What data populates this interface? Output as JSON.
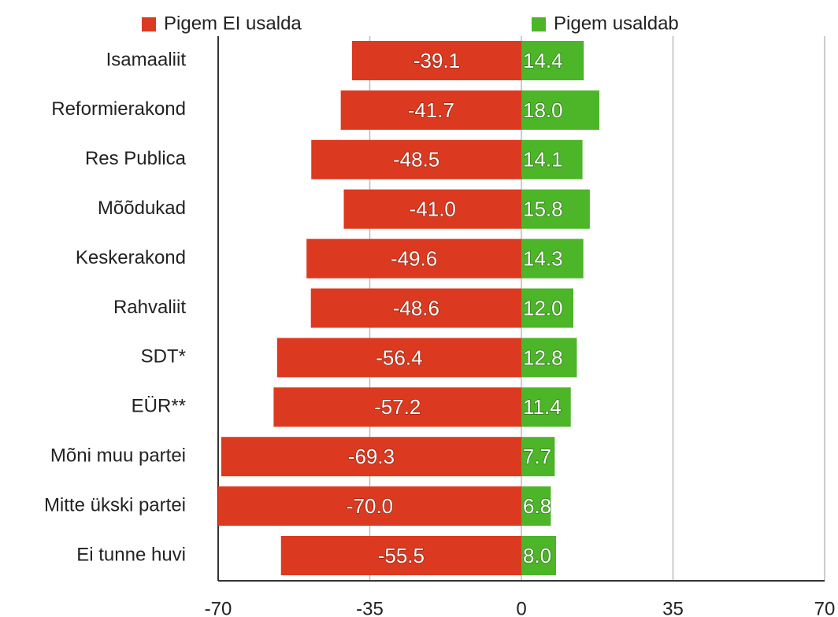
{
  "chart_data": {
    "type": "diverging-bar",
    "categories": [
      "Isamaaliit",
      "Reformierakond",
      "Res Publica",
      "Mõõdukad",
      "Keskerakond",
      "Rahvaliit",
      "SDT*",
      "EÜR**",
      "Mõni muu partei",
      "Mitte ükski partei",
      "Ei tunne huvi"
    ],
    "series": [
      {
        "name": "Pigem EI usalda",
        "color": "#dc3a20",
        "values": [
          -39.1,
          -41.7,
          -48.5,
          -41.0,
          -49.6,
          -48.6,
          -56.4,
          -57.2,
          -69.3,
          -70.0,
          -55.5
        ],
        "value_labels": [
          "-39.1",
          "-41.7",
          "-48.5",
          "-41.0",
          "-49.6",
          "-48.6",
          "-56.4",
          "-57.2",
          "-69.3",
          "-70.0",
          "-55.5"
        ]
      },
      {
        "name": "Pigem usaldab",
        "color": "#4cb528",
        "values": [
          14.4,
          18.0,
          14.1,
          15.8,
          14.3,
          12.0,
          12.8,
          11.4,
          7.7,
          6.8,
          8.0
        ],
        "value_labels": [
          "14.4",
          "18.0",
          "14.1",
          "15.8",
          "14.3",
          "12.0",
          "12.8",
          "11.4",
          "7.7",
          "6.8",
          "8.0"
        ]
      }
    ],
    "xlim": [
      -70,
      70
    ],
    "xticks": [
      -70,
      -35,
      0,
      35,
      70
    ],
    "grid": true,
    "legend": "top"
  }
}
